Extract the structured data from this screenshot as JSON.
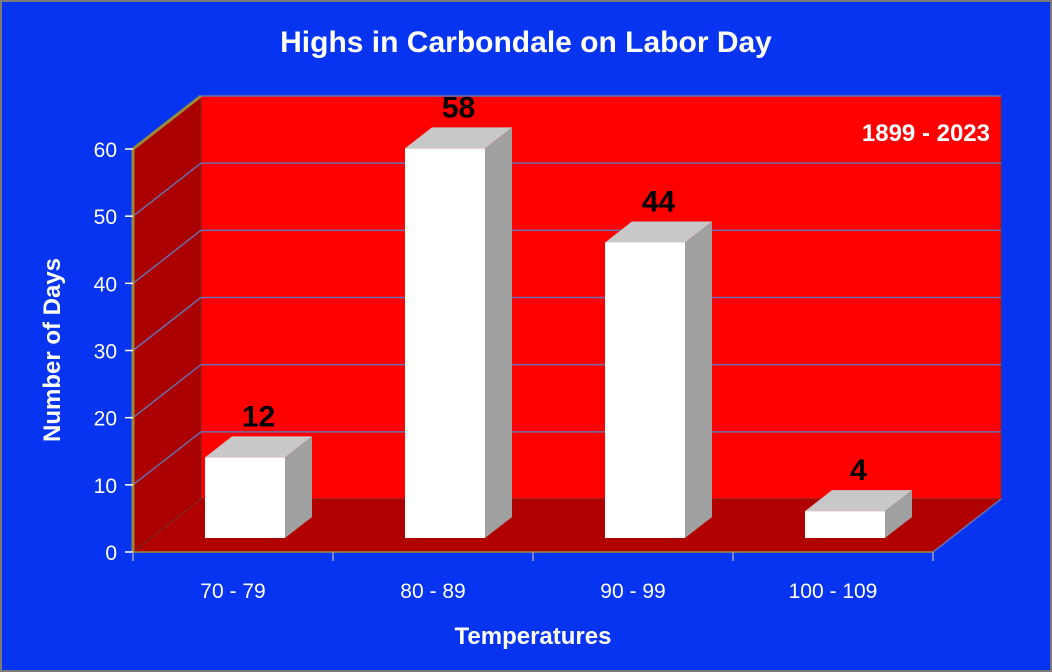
{
  "chart_data": {
    "type": "bar",
    "title": "Highs in Carbondale on Labor Day",
    "subtitle": "1899 - 2023",
    "xlabel": "Temperatures",
    "ylabel": "Number of Days",
    "categories": [
      "70 - 79",
      "80 - 89",
      "90 - 99",
      "100 - 109"
    ],
    "values": [
      12,
      58,
      44,
      4
    ],
    "data_labels": [
      "12",
      "58",
      "44",
      "4"
    ],
    "yticks": [
      "0",
      "10",
      "20",
      "30",
      "40",
      "50",
      "60"
    ],
    "ylim": [
      0,
      60
    ],
    "grid": true,
    "legend": "none",
    "style": "3d-column",
    "colors": {
      "background": "#0634f0",
      "back_wall": "#ff0000",
      "side_wall": "#aa0000",
      "floor": "#b00000",
      "bar_front": "#ffffff",
      "bar_top": "#c8c8c8",
      "bar_side": "#a0a0a0",
      "gridline": "#6a6fae",
      "axis_line": "#9a8a3a"
    }
  }
}
